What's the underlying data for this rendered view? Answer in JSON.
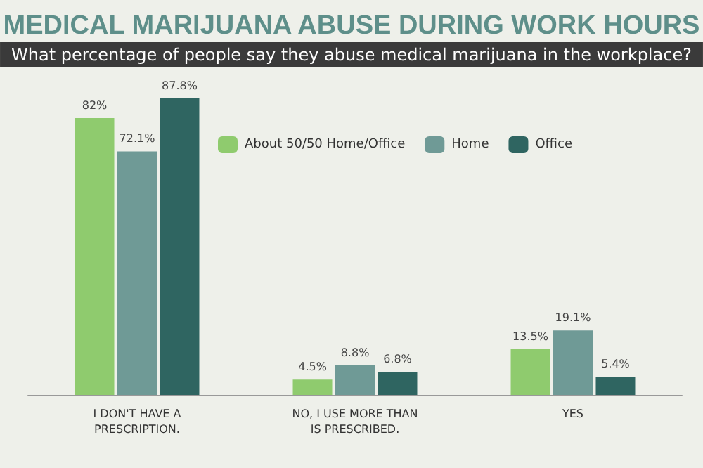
{
  "chart_data": {
    "type": "bar",
    "title": "MEDICAL MARIJUANA ABUSE DURING WORK HOURS",
    "subtitle": "What percentage of people say they abuse medical marijuana in the workplace?",
    "categories": [
      "I DON'T HAVE A\nPRESCRIPTION.",
      "NO, I USE MORE THAN\nIS PRESCRIBED.",
      "YES"
    ],
    "series": [
      {
        "name": "About 50/50 Home/Office",
        "color": "#8fcb6e",
        "values": [
          82,
          4.5,
          13.5
        ],
        "value_labels": [
          "82%",
          "4.5%",
          "13.5%"
        ]
      },
      {
        "name": "Home",
        "color": "#6f9a96",
        "values": [
          72.1,
          8.8,
          19.1
        ],
        "value_labels": [
          "72.1%",
          "8.8%",
          "19.1%"
        ]
      },
      {
        "name": "Office",
        "color": "#2f6561",
        "values": [
          87.8,
          6.8,
          5.4
        ],
        "value_labels": [
          "87.8%",
          "6.8%",
          "5.4%"
        ]
      }
    ],
    "legend": "top"
  }
}
